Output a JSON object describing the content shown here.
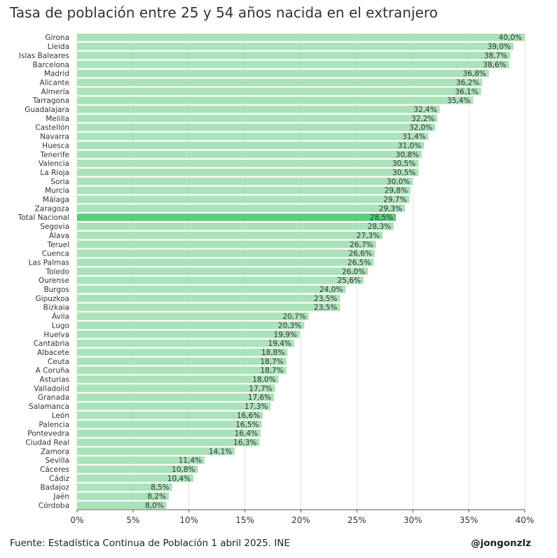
{
  "header": {
    "title": "Tasa de población entre 25 y 54 años nacida en el extranjero"
  },
  "footer": {
    "source": "Fuente: Estadística Continua de Población 1 abril 2025. INE",
    "author": "@jongonzlz"
  },
  "colors": {
    "bar": "#abe2b9",
    "highlight": "#5ccd7b",
    "grid": "#e3e3e3",
    "axis": "#555555"
  },
  "chart_data": {
    "type": "bar",
    "orientation": "horizontal",
    "title": "Tasa de población entre 25 y 54 años nacida en el extranjero",
    "xlim": [
      0,
      40
    ],
    "x_ticks": [
      0,
      5,
      10,
      15,
      20,
      25,
      30,
      35,
      40
    ],
    "x_tick_labels": [
      "0%",
      "5%",
      "10%",
      "15%",
      "20%",
      "25%",
      "30%",
      "35%",
      "40%"
    ],
    "grid": true,
    "highlight": "Total Nacional",
    "categories": [
      "Girona",
      "Lleida",
      "Islas Baleares",
      "Barcelona",
      "Madrid",
      "Alicante",
      "Almería",
      "Tarragona",
      "Guadalajara",
      "Melilla",
      "Castellón",
      "Navarra",
      "Huesca",
      "Tenerife",
      "Valencia",
      "La Rioja",
      "Soria",
      "Murcia",
      "Málaga",
      "Zaragoza",
      "Total Nacional",
      "Segovia",
      "Álava",
      "Teruel",
      "Cuenca",
      "Las Palmas",
      "Toledo",
      "Ourense",
      "Burgos",
      "Gipuzkoa",
      "Bizkaia",
      "Ávila",
      "Lugo",
      "Huelva",
      "Cantabria",
      "Albacete",
      "Ceuta",
      "A Coruña",
      "Asturias",
      "Valladolid",
      "Granada",
      "Salamanca",
      "León",
      "Palencia",
      "Pontevedra",
      "Ciudad Real",
      "Zamora",
      "Sevilla",
      "Cáceres",
      "Cádiz",
      "Badajoz",
      "Jaén",
      "Córdoba"
    ],
    "values": [
      40.0,
      39.0,
      38.7,
      38.6,
      36.8,
      36.2,
      36.1,
      35.4,
      32.4,
      32.2,
      32.0,
      31.4,
      31.0,
      30.8,
      30.5,
      30.5,
      30.0,
      29.8,
      29.7,
      29.3,
      28.5,
      28.3,
      27.3,
      26.7,
      26.6,
      26.5,
      26.0,
      25.6,
      24.0,
      23.5,
      23.5,
      20.7,
      20.3,
      19.9,
      19.4,
      18.8,
      18.7,
      18.7,
      18.0,
      17.7,
      17.6,
      17.3,
      16.6,
      16.5,
      16.4,
      16.3,
      14.1,
      11.4,
      10.8,
      10.4,
      8.5,
      8.2,
      8.0
    ],
    "value_labels": [
      "40,0%",
      "39,0%",
      "38,7%",
      "38,6%",
      "36,8%",
      "36,2%",
      "36,1%",
      "35,4%",
      "32,4%",
      "32,2%",
      "32,0%",
      "31,4%",
      "31,0%",
      "30,8%",
      "30,5%",
      "30,5%",
      "30,0%",
      "29,8%",
      "29,7%",
      "29,3%",
      "28,5%",
      "28,3%",
      "27,3%",
      "26,7%",
      "26,6%",
      "26,5%",
      "26,0%",
      "25,6%",
      "24,0%",
      "23,5%",
      "23,5%",
      "20,7%",
      "20,3%",
      "19,9%",
      "19,4%",
      "18,8%",
      "18,7%",
      "18,7%",
      "18,0%",
      "17,7%",
      "17,6%",
      "17,3%",
      "16,6%",
      "16,5%",
      "16,4%",
      "16,3%",
      "14,1%",
      "11,4%",
      "10,8%",
      "10,4%",
      "8,5%",
      "8,2%",
      "8,0%"
    ]
  }
}
